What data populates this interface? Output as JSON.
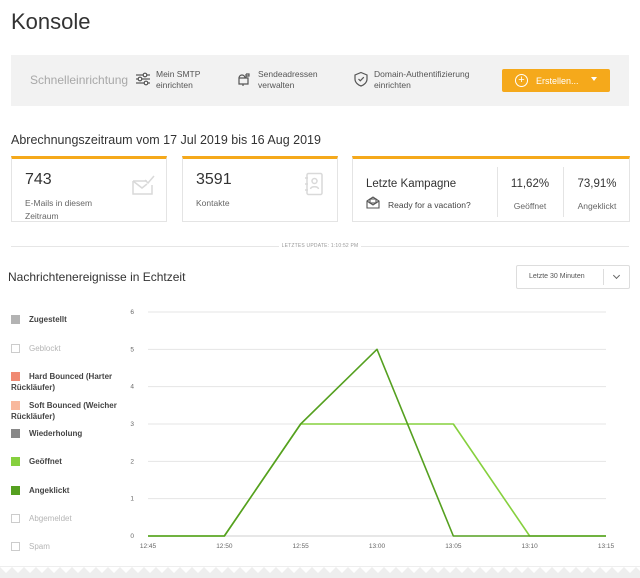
{
  "page_title": "Konsole",
  "quick_setup": {
    "label": "Schnelleinrichtung",
    "items": [
      {
        "icon": "sliders-icon",
        "text": "Mein SMTP\neinrichten"
      },
      {
        "icon": "mailbox-icon",
        "text": "Sendeadressen\nverwalten"
      },
      {
        "icon": "shield-check-icon",
        "text": "Domain-Authentifizierung\neinrichten"
      }
    ],
    "create_button": "Erstellen...",
    "accent_color": "#f5a91b"
  },
  "billing_period": "Abrechnungszeitraum vom 17 Jul 2019 bis 16 Aug 2019",
  "stats": {
    "emails": {
      "value": "743",
      "label": "E-Mails in diesem Zeitraum"
    },
    "contacts": {
      "value": "3591",
      "label": "Kontakte"
    },
    "campaign": {
      "title": "Letzte Kampagne",
      "name": "Ready for a vacation?",
      "opened_pct": "11,62%",
      "opened_label": "Geöffnet",
      "clicked_pct": "73,91%",
      "clicked_label": "Angeklickt"
    }
  },
  "last_update": "LETZTES UPDATE: 1:10:52 PM",
  "realtime": {
    "title": "Nachrichtenereignisse in Echtzeit",
    "range": "Letzte 30 Minuten"
  },
  "legend": [
    {
      "label": "Zugestellt",
      "color": "#b3b3b3",
      "active": true
    },
    {
      "label": "Geblockt",
      "color": "",
      "active": false
    },
    {
      "label": "Hard Bounced (Harter Rückläufer)",
      "color": "#f08a73",
      "active": true
    },
    {
      "label": "Soft Bounced (Weicher Rückläufer)",
      "color": "#f8b89d",
      "active": true
    },
    {
      "label": "Wiederholung",
      "color": "#888888",
      "active": true
    },
    {
      "label": "Geöffnet",
      "color": "#86d03e",
      "active": true
    },
    {
      "label": "Angeklickt",
      "color": "#55a020",
      "active": true
    },
    {
      "label": "Abgemeldet",
      "color": "",
      "active": false
    },
    {
      "label": "Spam",
      "color": "",
      "active": false
    }
  ],
  "chart_data": {
    "type": "line",
    "x": [
      "12:45",
      "12:50",
      "12:55",
      "13:00",
      "13:05",
      "13:10",
      "13:15"
    ],
    "ylim": [
      0,
      6
    ],
    "yticks": [
      "0",
      "1",
      "2",
      "3",
      "4",
      "5",
      "6"
    ],
    "grid": true,
    "series": [
      {
        "name": "Geöffnet",
        "color": "#86d03e",
        "values": [
          0,
          0,
          3,
          3,
          3,
          0,
          0
        ]
      },
      {
        "name": "Angeklickt",
        "color": "#55a020",
        "values": [
          0,
          0,
          3,
          5,
          0,
          0,
          0
        ]
      }
    ]
  }
}
